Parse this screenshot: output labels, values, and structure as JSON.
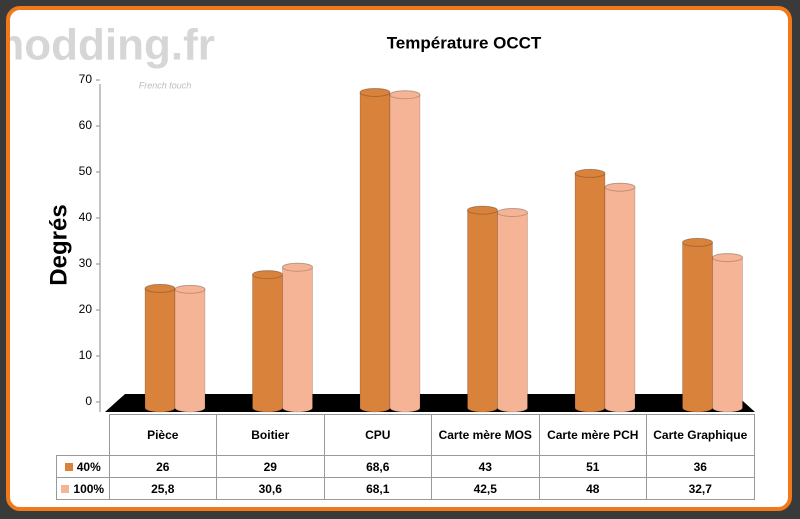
{
  "watermark": {
    "brand": "modding.fr",
    "tagline": "French touch"
  },
  "chart_data": {
    "type": "bar",
    "title": "Température OCCT",
    "ylabel": "Degrés",
    "categories": [
      "Pièce",
      "Boitier",
      "CPU",
      "Carte mère MOS",
      "Carte mère PCH",
      "Carte Graphique"
    ],
    "series": [
      {
        "name": "40%",
        "color": "#d9823c",
        "values": [
          26,
          29,
          68.6,
          43,
          51,
          36
        ],
        "value_labels": [
          "26",
          "29",
          "68,6",
          "43",
          "51",
          "36"
        ]
      },
      {
        "name": "100%",
        "color": "#f5b495",
        "values": [
          25.8,
          30.6,
          68.1,
          42.5,
          48,
          32.7
        ],
        "value_labels": [
          "25,8",
          "30,6",
          "68,1",
          "42,5",
          "48",
          "32,7"
        ]
      }
    ],
    "ylim": [
      0,
      70
    ],
    "yticks": [
      0,
      10,
      20,
      30,
      40,
      50,
      60,
      70
    ],
    "grid": false
  }
}
